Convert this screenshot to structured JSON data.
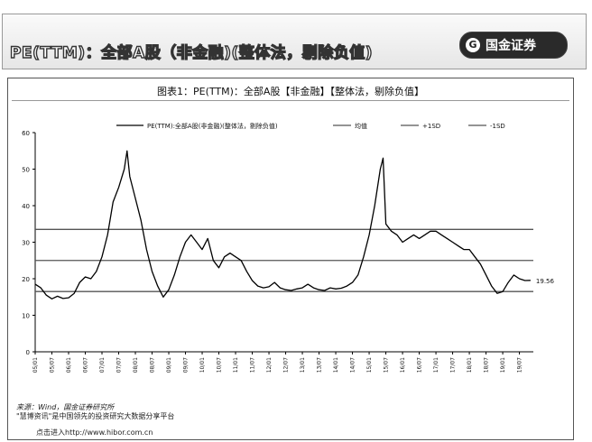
{
  "page": {
    "header_fragment": "",
    "banner_title": "PE(TTM)：全部A股（非金融)(整体法，剔除负值)",
    "logo_text": "国金证券",
    "logo_mark": "G",
    "figure_title": "图表1：PE(TTM)：全部A股【非金融】【整体法，剔除负值】",
    "source": "来源：Wind，国金证券研究所",
    "footnote": "\"慧博资讯\"是中国领先的投资研究大数据分享平台",
    "link_text": "点击进入http://www.hibor.com.cn"
  },
  "colors": {
    "line": "#000000",
    "ref": "#555555",
    "text": "#111111"
  },
  "chart_data": {
    "type": "line",
    "title": "图表1：PE(TTM)：全部A股【非金融】【整体法，剔除负值】",
    "xlabel": "",
    "ylabel": "",
    "ylim": [
      0,
      60
    ],
    "yticks": [
      0,
      10,
      20,
      30,
      40,
      50,
      60
    ],
    "x_start": "2005-01",
    "x_end": "2019-12",
    "x_ticklabels": [
      "05/01",
      "05/07",
      "06/01",
      "06/07",
      "07/01",
      "07/07",
      "08/01",
      "08/07",
      "09/01",
      "09/07",
      "10/01",
      "10/07",
      "11/01",
      "11/07",
      "12/01",
      "12/07",
      "13/01",
      "13/07",
      "14/01",
      "14/07",
      "15/01",
      "15/07",
      "16/01",
      "16/07",
      "17/01",
      "17/07",
      "18/01",
      "18/07",
      "19/01",
      "19/07"
    ],
    "legend_position": "top",
    "grid": false,
    "end_label": "19.56",
    "series": [
      {
        "name": "PE(TTM):全部A股(非金融)(整体法，剔除负值)",
        "style": "line",
        "x": [
          "2005-01",
          "2005-03",
          "2005-05",
          "2005-07",
          "2005-09",
          "2005-11",
          "2006-01",
          "2006-03",
          "2006-05",
          "2006-07",
          "2006-09",
          "2006-11",
          "2007-01",
          "2007-03",
          "2007-05",
          "2007-07",
          "2007-09",
          "2007-10",
          "2007-11",
          "2008-01",
          "2008-03",
          "2008-05",
          "2008-07",
          "2008-09",
          "2008-11",
          "2009-01",
          "2009-03",
          "2009-05",
          "2009-07",
          "2009-09",
          "2009-11",
          "2010-01",
          "2010-03",
          "2010-05",
          "2010-07",
          "2010-09",
          "2010-11",
          "2011-01",
          "2011-03",
          "2011-05",
          "2011-07",
          "2011-09",
          "2011-11",
          "2012-01",
          "2012-03",
          "2012-05",
          "2012-07",
          "2012-09",
          "2012-11",
          "2013-01",
          "2013-03",
          "2013-05",
          "2013-07",
          "2013-09",
          "2013-11",
          "2014-01",
          "2014-03",
          "2014-05",
          "2014-07",
          "2014-09",
          "2014-11",
          "2015-01",
          "2015-03",
          "2015-05",
          "2015-06",
          "2015-07",
          "2015-09",
          "2015-11",
          "2016-01",
          "2016-03",
          "2016-05",
          "2016-07",
          "2016-09",
          "2016-11",
          "2017-01",
          "2017-03",
          "2017-05",
          "2017-07",
          "2017-09",
          "2017-11",
          "2018-01",
          "2018-03",
          "2018-05",
          "2018-07",
          "2018-09",
          "2018-11",
          "2019-01",
          "2019-03",
          "2019-05",
          "2019-07",
          "2019-09",
          "2019-11"
        ],
        "values": [
          18.5,
          17.5,
          15.5,
          14.5,
          15.2,
          14.6,
          14.8,
          16,
          19,
          20.5,
          20,
          22,
          26,
          32,
          41,
          45,
          50,
          55,
          48,
          42,
          36,
          28,
          22,
          18,
          15,
          17,
          21,
          26,
          30,
          32,
          30,
          28,
          31,
          25,
          23,
          26,
          27,
          26,
          25,
          22,
          19.5,
          18,
          17.5,
          17.8,
          19,
          17.5,
          17,
          16.8,
          17.2,
          17.5,
          18.5,
          17.5,
          17,
          16.8,
          17.5,
          17.2,
          17.4,
          18,
          19,
          21,
          26,
          32,
          40,
          50,
          53,
          35,
          33,
          32,
          30,
          31,
          32,
          31,
          32,
          33,
          33,
          32,
          31,
          30,
          29,
          28,
          28,
          26,
          24,
          21,
          18,
          16,
          16.5,
          19,
          21,
          20,
          19.5,
          19.56
        ]
      },
      {
        "name": "均值",
        "style": "solid-flat",
        "value": 25
      },
      {
        "name": "+1SD",
        "style": "solid-flat",
        "value": 33.5
      },
      {
        "name": "-1SD",
        "style": "solid-flat",
        "value": 16.5
      }
    ]
  }
}
